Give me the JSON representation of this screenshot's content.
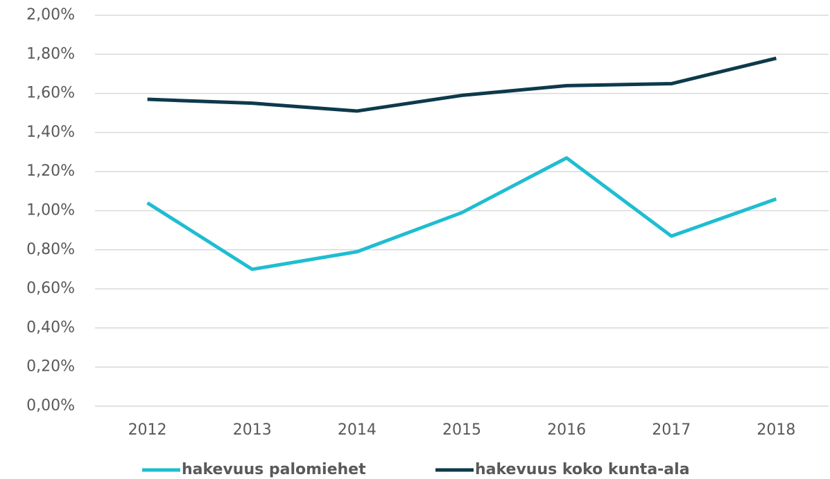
{
  "chart_data": {
    "type": "line",
    "categories": [
      "2012",
      "2013",
      "2014",
      "2015",
      "2016",
      "2017",
      "2018"
    ],
    "series": [
      {
        "name": "hakevuus palomiehet",
        "color": "#1fbdd1",
        "values": [
          1.04,
          0.7,
          0.79,
          0.99,
          1.27,
          0.87,
          1.06
        ]
      },
      {
        "name": "hakevuus koko kunta-ala",
        "color": "#0d3a4b",
        "values": [
          1.57,
          1.55,
          1.51,
          1.59,
          1.64,
          1.65,
          1.78
        ]
      }
    ],
    "ylim": [
      0,
      2
    ],
    "yticks": [
      {
        "value": 0,
        "label": "0,00%"
      },
      {
        "value": 0.2,
        "label": "0,20%"
      },
      {
        "value": 0.4,
        "label": "0,40%"
      },
      {
        "value": 0.6,
        "label": "0,60%"
      },
      {
        "value": 0.8,
        "label": "0,80%"
      },
      {
        "value": 1.0,
        "label": "1,00%"
      },
      {
        "value": 1.2,
        "label": "1,20%"
      },
      {
        "value": 1.4,
        "label": "1,40%"
      },
      {
        "value": 1.6,
        "label": "1,60%"
      },
      {
        "value": 1.8,
        "label": "1,80%"
      },
      {
        "value": 2.0,
        "label": "2,00%"
      }
    ],
    "grid": true,
    "legend": "bottom"
  }
}
